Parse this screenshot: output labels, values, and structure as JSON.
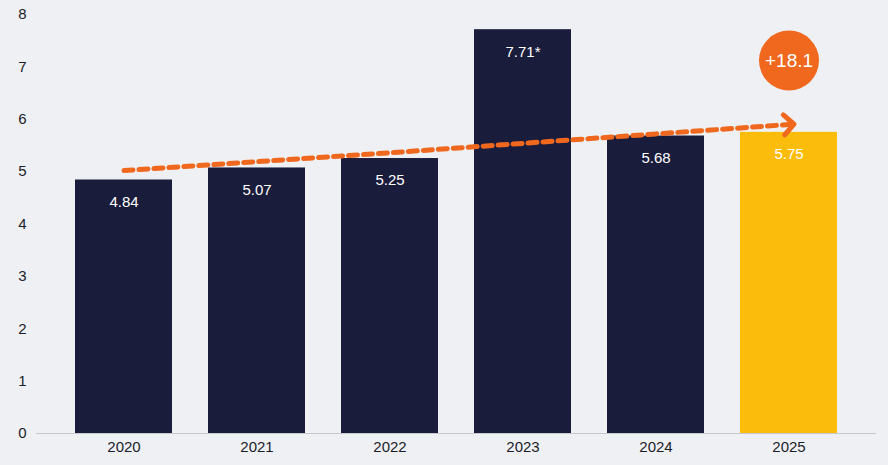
{
  "chart_data": {
    "type": "bar",
    "categories": [
      "2020",
      "2021",
      "2022",
      "2023",
      "2024",
      "2025"
    ],
    "values": [
      4.84,
      5.07,
      5.25,
      7.71,
      5.68,
      5.75
    ],
    "value_labels": [
      "4.84",
      "5.07",
      "5.25",
      "7.71*",
      "5.68",
      "5.75"
    ],
    "colors": [
      "#1a1c3b",
      "#1a1c3b",
      "#1a1c3b",
      "#1a1c3b",
      "#1a1c3b",
      "#fbbc0b"
    ],
    "data_labels": true,
    "ylim": [
      0,
      8
    ],
    "yticks": [
      0,
      1,
      2,
      3,
      4,
      5,
      6,
      7,
      8
    ],
    "grid": false,
    "trend": {
      "type": "line",
      "values": [
        5.02,
        5.19,
        5.36,
        5.54,
        5.72,
        5.9
      ],
      "color": "#f0681e",
      "line_style": "dashed",
      "marker": "arrow"
    },
    "annotations": [
      {
        "text": "+18.1",
        "color": "#f0681e"
      }
    ]
  }
}
